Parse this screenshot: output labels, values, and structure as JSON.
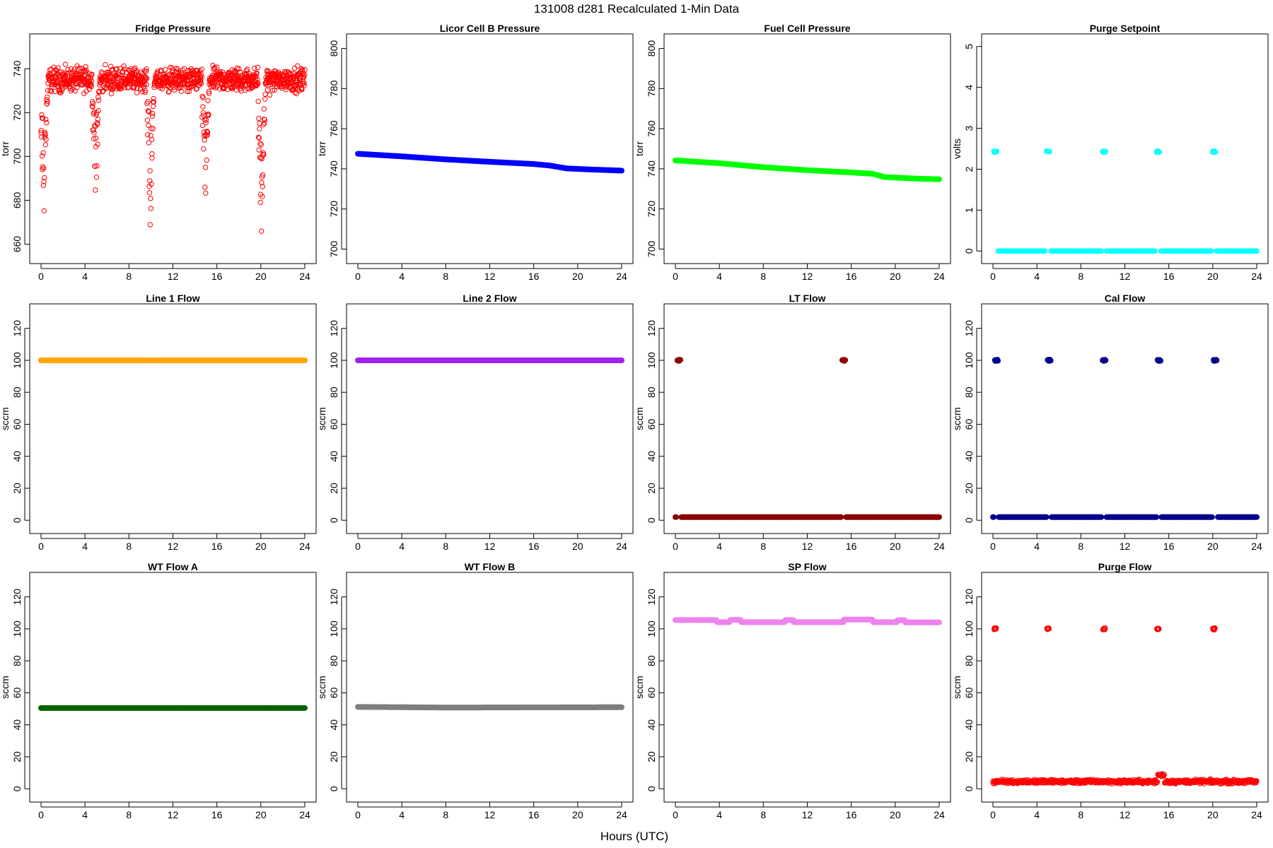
{
  "figure": {
    "title": "131008   d281   Recalculated 1-Min Data",
    "xlabel": "Hours (UTC)"
  },
  "chart_data": [
    {
      "type": "scatter",
      "title": "Fridge Pressure",
      "ylabel": "torr",
      "xlim": [
        0,
        24
      ],
      "ylim": [
        655,
        752
      ],
      "yticks": [
        660,
        680,
        700,
        720,
        740
      ],
      "xticks": [
        0,
        4,
        8,
        12,
        16,
        20,
        24
      ],
      "color": "#ff0000",
      "marker": "open-circle",
      "pattern": "noisy-dips",
      "base": 735,
      "noise": 6,
      "dips": [
        {
          "x": 0.3,
          "min": 670
        },
        {
          "x": 5.0,
          "min": 673
        },
        {
          "x": 10.0,
          "min": 666
        },
        {
          "x": 15.0,
          "min": 672
        },
        {
          "x": 20.1,
          "min": 656
        }
      ],
      "x": [
        0,
        2,
        4,
        6,
        8,
        10,
        12,
        14,
        16,
        18,
        20,
        22,
        24
      ],
      "y": [
        722,
        739,
        738,
        737,
        735,
        700,
        734,
        735,
        735,
        730,
        705,
        731,
        729
      ]
    },
    {
      "type": "scatter",
      "title": "Licor Cell B Pressure",
      "ylabel": "torr",
      "xlim": [
        0,
        24
      ],
      "ylim": [
        697,
        803
      ],
      "yticks": [
        700,
        720,
        740,
        760,
        780,
        800
      ],
      "xticks": [
        0,
        4,
        8,
        12,
        16,
        20,
        24
      ],
      "color": "#0000ff",
      "marker": "filled",
      "pattern": "line",
      "x": [
        0,
        4,
        8,
        12,
        16,
        17.5,
        19,
        21,
        24
      ],
      "y": [
        747.5,
        746.2,
        744.7,
        743.5,
        742.4,
        741.6,
        740.2,
        739.7,
        739.1
      ]
    },
    {
      "type": "scatter",
      "title": "Fuel Cell Pressure",
      "ylabel": "torr",
      "xlim": [
        0,
        24
      ],
      "ylim": [
        697,
        803
      ],
      "yticks": [
        700,
        720,
        740,
        760,
        780,
        800
      ],
      "xticks": [
        0,
        4,
        8,
        12,
        16,
        20,
        24
      ],
      "color": "#00ff00",
      "marker": "filled",
      "pattern": "line",
      "x": [
        0,
        4,
        8,
        12,
        16,
        18,
        19,
        22,
        24
      ],
      "y": [
        744.2,
        742.8,
        740.8,
        739.3,
        738.2,
        737.5,
        735.9,
        735.1,
        734.8
      ]
    },
    {
      "type": "scatter",
      "title": "Purge Setpoint",
      "ylabel": "volts",
      "xlim": [
        0,
        24
      ],
      "ylim": [
        -0.1,
        5.1
      ],
      "yticks": [
        0,
        1,
        2,
        3,
        4,
        5
      ],
      "xticks": [
        0,
        4,
        8,
        12,
        16,
        20,
        24
      ],
      "color": "#00ffff",
      "marker": "open-circle",
      "pattern": "baseline-bursts",
      "base": 0,
      "burst_value": 2.43,
      "bursts": [
        0.2,
        5.0,
        10.1,
        15.0,
        20.1
      ],
      "x": [
        0,
        0.2,
        5.0,
        10.1,
        15.0,
        20.1,
        24
      ],
      "y": [
        0,
        2.45,
        2.41,
        2.44,
        2.41,
        2.44,
        0
      ]
    },
    {
      "type": "scatter",
      "title": "Line 1 Flow",
      "ylabel": "sccm",
      "xlim": [
        0,
        24
      ],
      "ylim": [
        -3,
        130
      ],
      "yticks": [
        0,
        20,
        40,
        60,
        80,
        100,
        120
      ],
      "xticks": [
        0,
        4,
        8,
        12,
        16,
        20,
        24
      ],
      "color": "#ffa500",
      "marker": "filled",
      "pattern": "line",
      "x": [
        0,
        24
      ],
      "y": [
        100,
        100
      ]
    },
    {
      "type": "scatter",
      "title": "Line 2 Flow",
      "ylabel": "sccm",
      "xlim": [
        0,
        24
      ],
      "ylim": [
        -3,
        130
      ],
      "yticks": [
        0,
        20,
        40,
        60,
        80,
        100,
        120
      ],
      "xticks": [
        0,
        4,
        8,
        12,
        16,
        20,
        24
      ],
      "color": "#a020f0",
      "marker": "filled",
      "pattern": "line",
      "x": [
        0,
        24
      ],
      "y": [
        100,
        100
      ]
    },
    {
      "type": "scatter",
      "title": "LT Flow",
      "ylabel": "sccm",
      "xlim": [
        0,
        24
      ],
      "ylim": [
        -3,
        130
      ],
      "yticks": [
        0,
        20,
        40,
        60,
        80,
        100,
        120
      ],
      "xticks": [
        0,
        4,
        8,
        12,
        16,
        20,
        24
      ],
      "color": "#8b0000",
      "marker": "filled",
      "pattern": "baseline-bursts",
      "base": 2,
      "burst_value": 100,
      "bursts": [
        0.3,
        15.3
      ],
      "x": [
        0,
        0.3,
        15.3,
        24
      ],
      "y": [
        2,
        100,
        100,
        2
      ]
    },
    {
      "type": "scatter",
      "title": "Cal Flow",
      "ylabel": "sccm",
      "xlim": [
        0,
        24
      ],
      "ylim": [
        -3,
        130
      ],
      "yticks": [
        0,
        20,
        40,
        60,
        80,
        100,
        120
      ],
      "xticks": [
        0,
        4,
        8,
        12,
        16,
        20,
        24
      ],
      "color": "#00008b",
      "marker": "filled",
      "pattern": "baseline-bursts",
      "base": 2,
      "burst_value": 100,
      "bursts": [
        0.3,
        5.1,
        10.1,
        15.1,
        20.2
      ],
      "x": [
        0,
        0.3,
        5.1,
        10.1,
        15.1,
        20.2,
        24
      ],
      "y": [
        2,
        100,
        100,
        100,
        100,
        100,
        2
      ]
    },
    {
      "type": "scatter",
      "title": "WT Flow A",
      "ylabel": "sccm",
      "xlim": [
        0,
        24
      ],
      "ylim": [
        -3,
        130
      ],
      "yticks": [
        0,
        20,
        40,
        60,
        80,
        100,
        120
      ],
      "xticks": [
        0,
        4,
        8,
        12,
        16,
        20,
        24
      ],
      "color": "#006400",
      "marker": "filled",
      "pattern": "line",
      "x": [
        0,
        24
      ],
      "y": [
        50.5,
        50.5
      ]
    },
    {
      "type": "scatter",
      "title": "WT Flow B",
      "ylabel": "sccm",
      "xlim": [
        0,
        24
      ],
      "ylim": [
        -3,
        130
      ],
      "yticks": [
        0,
        20,
        40,
        60,
        80,
        100,
        120
      ],
      "xticks": [
        0,
        4,
        8,
        12,
        16,
        20,
        24
      ],
      "color": "#7f7f7f",
      "marker": "filled",
      "pattern": "line",
      "x": [
        0,
        8,
        16,
        24
      ],
      "y": [
        51.2,
        50.8,
        50.9,
        51.0
      ]
    },
    {
      "type": "scatter",
      "title": "SP Flow",
      "ylabel": "sccm",
      "xlim": [
        0,
        24
      ],
      "ylim": [
        -3,
        130
      ],
      "yticks": [
        0,
        20,
        40,
        60,
        80,
        100,
        120
      ],
      "xticks": [
        0,
        4,
        8,
        12,
        16,
        20,
        24
      ],
      "color": "#ee82ee",
      "marker": "filled",
      "pattern": "step",
      "x": [
        0,
        1.5,
        3.8,
        5.0,
        6.0,
        10.0,
        10.8,
        15.3,
        18.0,
        20.2,
        20.9,
        24
      ],
      "y": [
        105.5,
        105.5,
        104.2,
        105.6,
        104.2,
        105.5,
        104.2,
        105.8,
        104.2,
        105.4,
        104.0,
        104.0
      ]
    },
    {
      "type": "scatter",
      "title": "Purge Flow",
      "ylabel": "sccm",
      "xlim": [
        0,
        24
      ],
      "ylim": [
        -3,
        130
      ],
      "yticks": [
        0,
        20,
        40,
        60,
        80,
        100,
        120
      ],
      "xticks": [
        0,
        4,
        8,
        12,
        16,
        20,
        24
      ],
      "color": "#ff0000",
      "marker": "open-circle",
      "pattern": "noisy-bursts",
      "base": 4.5,
      "noise": 1.8,
      "burst_value": 100,
      "bursts": [
        0.2,
        5.0,
        10.1,
        15.0,
        20.1
      ],
      "x": [
        0,
        0.2,
        5.0,
        10.1,
        15.0,
        20.1,
        24
      ],
      "y": [
        4.5,
        100,
        100,
        99.8,
        100,
        99.7,
        4.5
      ]
    }
  ]
}
